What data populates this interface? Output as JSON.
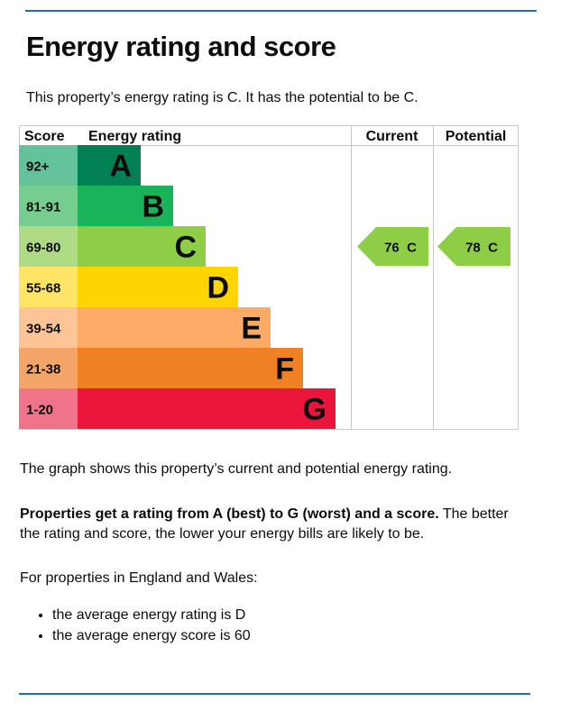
{
  "page": {
    "heading": "Energy rating and score",
    "summary": "This property’s energy rating is C. It has the potential to be C."
  },
  "chart_data": {
    "type": "bar",
    "headers": {
      "score": "Score",
      "rating": "Energy rating",
      "current": "Current",
      "potential": "Potential"
    },
    "bands": [
      {
        "letter": "A",
        "range": "92+",
        "min_score": 92,
        "color": "#008054",
        "score_color": "#63c29a"
      },
      {
        "letter": "B",
        "range": "81-91",
        "min_score": 81,
        "color": "#19b459",
        "score_color": "#75cd8f"
      },
      {
        "letter": "C",
        "range": "69-80",
        "min_score": 69,
        "color": "#8dce46",
        "score_color": "#afdb85"
      },
      {
        "letter": "D",
        "range": "55-68",
        "min_score": 55,
        "color": "#ffd500",
        "score_color": "#ffe466"
      },
      {
        "letter": "E",
        "range": "39-54",
        "min_score": 39,
        "color": "#fcaa65",
        "score_color": "#fdc496"
      },
      {
        "letter": "F",
        "range": "21-38",
        "min_score": 21,
        "color": "#ef8023",
        "score_color": "#f4a66a"
      },
      {
        "letter": "G",
        "range": "1-20",
        "min_score": 1,
        "color": "#e9153b",
        "score_color": "#f07489"
      }
    ],
    "current": {
      "score": 76,
      "band": "C",
      "label": "76  C"
    },
    "potential": {
      "score": 78,
      "band": "C",
      "label": "78  C"
    }
  },
  "explanation": {
    "graph_note": "The graph shows this property’s current and potential energy rating.",
    "bold_part": "Properties get a rating from A (best) to G (worst) and a score.",
    "rest": " The better the rating and score, the lower your energy bills are likely to be.",
    "region_intro": "For properties in England and Wales:",
    "bullets": [
      "the average energy rating is D",
      "the average energy score is 60"
    ]
  }
}
